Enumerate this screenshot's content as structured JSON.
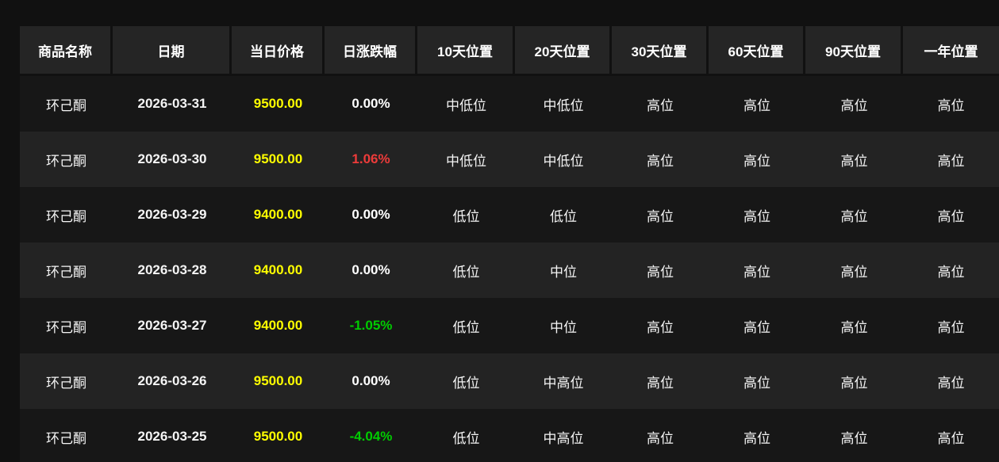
{
  "colors": {
    "page_background": "#111111",
    "header_background": "#252525",
    "row_dark": "#171717",
    "row_light": "#232323",
    "price": "#ffff00",
    "up": "#ed3b3a",
    "down": "#00cc00",
    "flat": "#ffffff"
  },
  "table": {
    "columns": [
      {
        "key": "name",
        "label": "商品名称"
      },
      {
        "key": "date",
        "label": "日期"
      },
      {
        "key": "price",
        "label": "当日价格"
      },
      {
        "key": "change",
        "label": "日涨跌幅"
      },
      {
        "key": "pos10",
        "label": "10天位置"
      },
      {
        "key": "pos20",
        "label": "20天位置"
      },
      {
        "key": "pos30",
        "label": "30天位置"
      },
      {
        "key": "pos60",
        "label": "60天位置"
      },
      {
        "key": "pos90",
        "label": "90天位置"
      },
      {
        "key": "pos365",
        "label": "一年位置"
      }
    ],
    "rows": [
      {
        "name": "环己酮",
        "date": "2026-03-31",
        "price": "9500.00",
        "change": "0.00%",
        "change_dir": "flat",
        "pos10": "中低位",
        "pos20": "中低位",
        "pos30": "高位",
        "pos60": "高位",
        "pos90": "高位",
        "pos365": "高位"
      },
      {
        "name": "环己酮",
        "date": "2026-03-30",
        "price": "9500.00",
        "change": "1.06%",
        "change_dir": "up",
        "pos10": "中低位",
        "pos20": "中低位",
        "pos30": "高位",
        "pos60": "高位",
        "pos90": "高位",
        "pos365": "高位"
      },
      {
        "name": "环己酮",
        "date": "2026-03-29",
        "price": "9400.00",
        "change": "0.00%",
        "change_dir": "flat",
        "pos10": "低位",
        "pos20": "低位",
        "pos30": "高位",
        "pos60": "高位",
        "pos90": "高位",
        "pos365": "高位"
      },
      {
        "name": "环己酮",
        "date": "2026-03-28",
        "price": "9400.00",
        "change": "0.00%",
        "change_dir": "flat",
        "pos10": "低位",
        "pos20": "中位",
        "pos30": "高位",
        "pos60": "高位",
        "pos90": "高位",
        "pos365": "高位"
      },
      {
        "name": "环己酮",
        "date": "2026-03-27",
        "price": "9400.00",
        "change": "-1.05%",
        "change_dir": "down",
        "pos10": "低位",
        "pos20": "中位",
        "pos30": "高位",
        "pos60": "高位",
        "pos90": "高位",
        "pos365": "高位"
      },
      {
        "name": "环己酮",
        "date": "2026-03-26",
        "price": "9500.00",
        "change": "0.00%",
        "change_dir": "flat",
        "pos10": "低位",
        "pos20": "中高位",
        "pos30": "高位",
        "pos60": "高位",
        "pos90": "高位",
        "pos365": "高位"
      },
      {
        "name": "环己酮",
        "date": "2026-03-25",
        "price": "9500.00",
        "change": "-4.04%",
        "change_dir": "down",
        "pos10": "低位",
        "pos20": "中高位",
        "pos30": "高位",
        "pos60": "高位",
        "pos90": "高位",
        "pos365": "高位"
      }
    ]
  }
}
